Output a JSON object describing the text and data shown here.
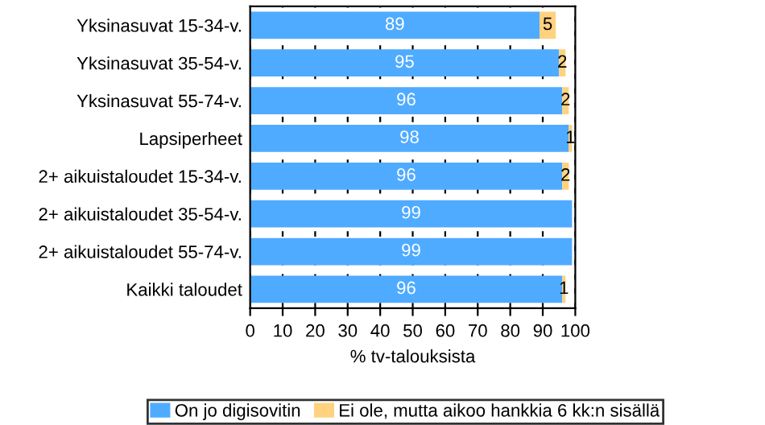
{
  "chart_data": {
    "type": "bar",
    "orientation": "horizontal",
    "stacked": true,
    "categories": [
      "Yksinasuvat 15-34-v.",
      "Yksinasuvat 35-54-v.",
      "Yksinasuvat 55-74-v.",
      "Lapsiperheet",
      "2+ aikuistaloudet 15-34-v.",
      "2+ aikuistaloudet 35-54-v.",
      "2+ aikuistaloudet 55-74-v.",
      "Kaikki taloudet"
    ],
    "series": [
      {
        "name": "On jo digisovitin",
        "color": "#4fabff",
        "values": [
          89,
          95,
          96,
          98,
          96,
          99,
          99,
          96
        ],
        "value_labels": [
          "89",
          "95",
          "96",
          "98",
          "96",
          "99",
          "99",
          "96"
        ]
      },
      {
        "name": "Ei ole, mutta aikoo hankkia 6 kk:n sisällä",
        "color": "#ffd27f",
        "values": [
          5,
          2,
          2,
          1,
          2,
          null,
          null,
          1
        ],
        "value_labels": [
          "5",
          "2",
          "2",
          "1",
          "2",
          null,
          null,
          "1"
        ]
      }
    ],
    "xlim": [
      0,
      100
    ],
    "xticks": [
      0,
      10,
      20,
      30,
      40,
      50,
      60,
      70,
      80,
      90,
      100
    ],
    "xlabel": "% tv-talouksista",
    "grid": "x",
    "legend": "bottom"
  }
}
